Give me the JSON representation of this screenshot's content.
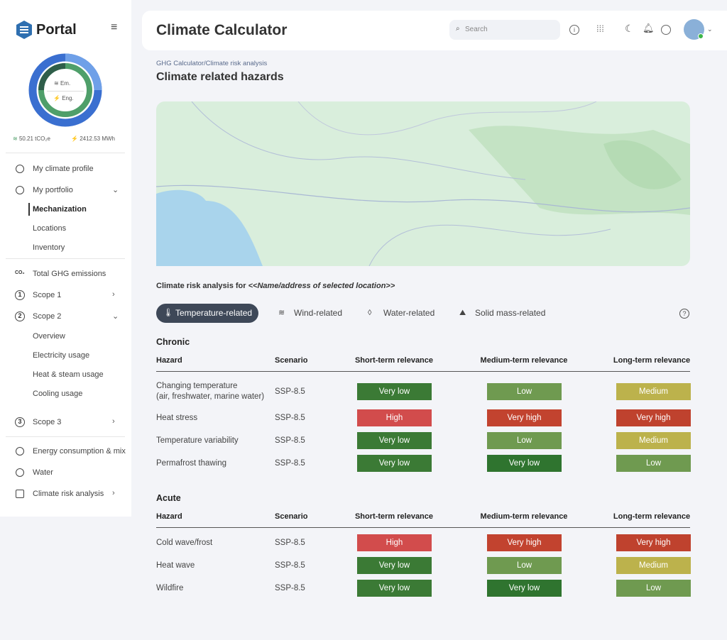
{
  "sidebar": {
    "brand": "Portal",
    "donut": {
      "em_label": "Em.",
      "eng_label": "Eng."
    },
    "stats": {
      "emissions": "50.21 tCO₂e",
      "energy": "2412.53 MWh"
    },
    "nav": [
      {
        "label": "My climate profile"
      },
      {
        "label": "My portfolio"
      },
      {
        "label": "Mechanization"
      },
      {
        "label": "Locations"
      },
      {
        "label": "Inventory"
      },
      {
        "label": "Total GHG emissions",
        "icon": "CO₂"
      },
      {
        "label": "Scope 1",
        "icon": "1"
      },
      {
        "label": "Scope 2",
        "icon": "2"
      },
      {
        "label": "Overview"
      },
      {
        "label": "Electricity usage"
      },
      {
        "label": "Heat & steam usage"
      },
      {
        "label": "Cooling usage"
      },
      {
        "label": "Scope 3",
        "icon": "3"
      },
      {
        "label": "Energy consumption & mix"
      },
      {
        "label": "Water"
      },
      {
        "label": "Climate risk analysis"
      }
    ]
  },
  "header": {
    "title": "Climate Calculator",
    "search_placeholder": "Search"
  },
  "breadcrumb": "GHG Calculator/Climate risk analysis",
  "page_title": "Climate related hazards",
  "analysis_title": {
    "prefix": "Climate risk analysis for ",
    "location": "<<Name/address of selected location>>"
  },
  "tabs": [
    "Temperature-related",
    "Wind-related",
    "Water-related",
    "Solid mass-related"
  ],
  "tables": [
    {
      "title": "Chronic",
      "columns": [
        "Hazard",
        "Scenario",
        "Short-term relevance",
        "Medium-term relevance",
        "Long-term relevance"
      ],
      "rows": [
        {
          "hazard": "Changing temperature\n(air, freshwater, marine water)",
          "scenario": "SSP-8.5",
          "levels": [
            {
              "text": "Very low",
              "color": "#3b7a35"
            },
            {
              "text": "Low",
              "color": "#6f9a50"
            },
            {
              "text": "Medium",
              "color": "#bcb24c"
            }
          ]
        },
        {
          "hazard": "Heat stress",
          "scenario": "SSP-8.5",
          "levels": [
            {
              "text": "High",
              "color": "#d24c4c"
            },
            {
              "text": "Very high",
              "color": "#c2432f"
            },
            {
              "text": "Very high",
              "color": "#bf422e"
            }
          ]
        },
        {
          "hazard": "Temperature variability",
          "scenario": "SSP-8.5",
          "levels": [
            {
              "text": "Very low",
              "color": "#3b7a35"
            },
            {
              "text": "Low",
              "color": "#6f9a50"
            },
            {
              "text": "Medium",
              "color": "#bcb24c"
            }
          ]
        },
        {
          "hazard": "Permafrost thawing",
          "scenario": "SSP-8.5",
          "levels": [
            {
              "text": "Very low",
              "color": "#3b7a35"
            },
            {
              "text": "Very low",
              "color": "#2f742f"
            },
            {
              "text": "Low",
              "color": "#6f9a50"
            }
          ]
        }
      ]
    },
    {
      "title": "Acute",
      "columns": [
        "Hazard",
        "Scenario",
        "Short-term relevance",
        "Medium-term relevance",
        "Long-term relevance"
      ],
      "rows": [
        {
          "hazard": "Cold wave/frost",
          "scenario": "SSP-8.5",
          "levels": [
            {
              "text": "High",
              "color": "#d24c4c"
            },
            {
              "text": "Very high",
              "color": "#c2432f"
            },
            {
              "text": "Very high",
              "color": "#bf422e"
            }
          ]
        },
        {
          "hazard": "Heat wave",
          "scenario": "SSP-8.5",
          "levels": [
            {
              "text": "Very low",
              "color": "#3b7a35"
            },
            {
              "text": "Low",
              "color": "#6f9a50"
            },
            {
              "text": "Medium",
              "color": "#bcb24c"
            }
          ]
        },
        {
          "hazard": "Wildfire",
          "scenario": "SSP-8.5",
          "levels": [
            {
              "text": "Very low",
              "color": "#3b7a35"
            },
            {
              "text": "Very low",
              "color": "#2f742f"
            },
            {
              "text": "Low",
              "color": "#6f9a50"
            }
          ]
        }
      ]
    }
  ]
}
